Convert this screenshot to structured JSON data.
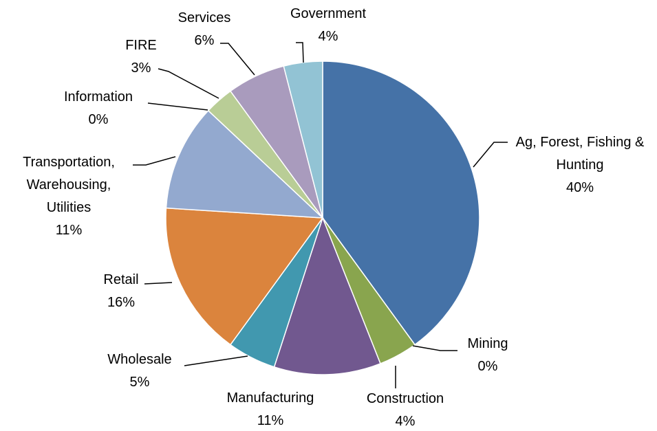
{
  "chart_data": {
    "type": "pie",
    "categories": [
      "Ag, Forest, Fishing & Hunting",
      "Mining",
      "Construction",
      "Manufacturing",
      "Wholesale",
      "Retail",
      "Transportation, Warehousing, Utilities",
      "Information",
      "FIRE",
      "Services",
      "Government"
    ],
    "values": [
      40,
      0,
      4,
      11,
      5,
      16,
      11,
      0,
      3,
      6,
      4
    ],
    "value_labels": [
      "40%",
      "0%",
      "4%",
      "11%",
      "5%",
      "16%",
      "11%",
      "0%",
      "3%",
      "6%",
      "4%"
    ],
    "colors": [
      "#4572a7",
      "#aa4643",
      "#89a54e",
      "#71588f",
      "#4198af",
      "#db843d",
      "#93a9cf",
      "#d19392",
      "#b9cd96",
      "#a99bbd",
      "#92c3d4"
    ]
  }
}
